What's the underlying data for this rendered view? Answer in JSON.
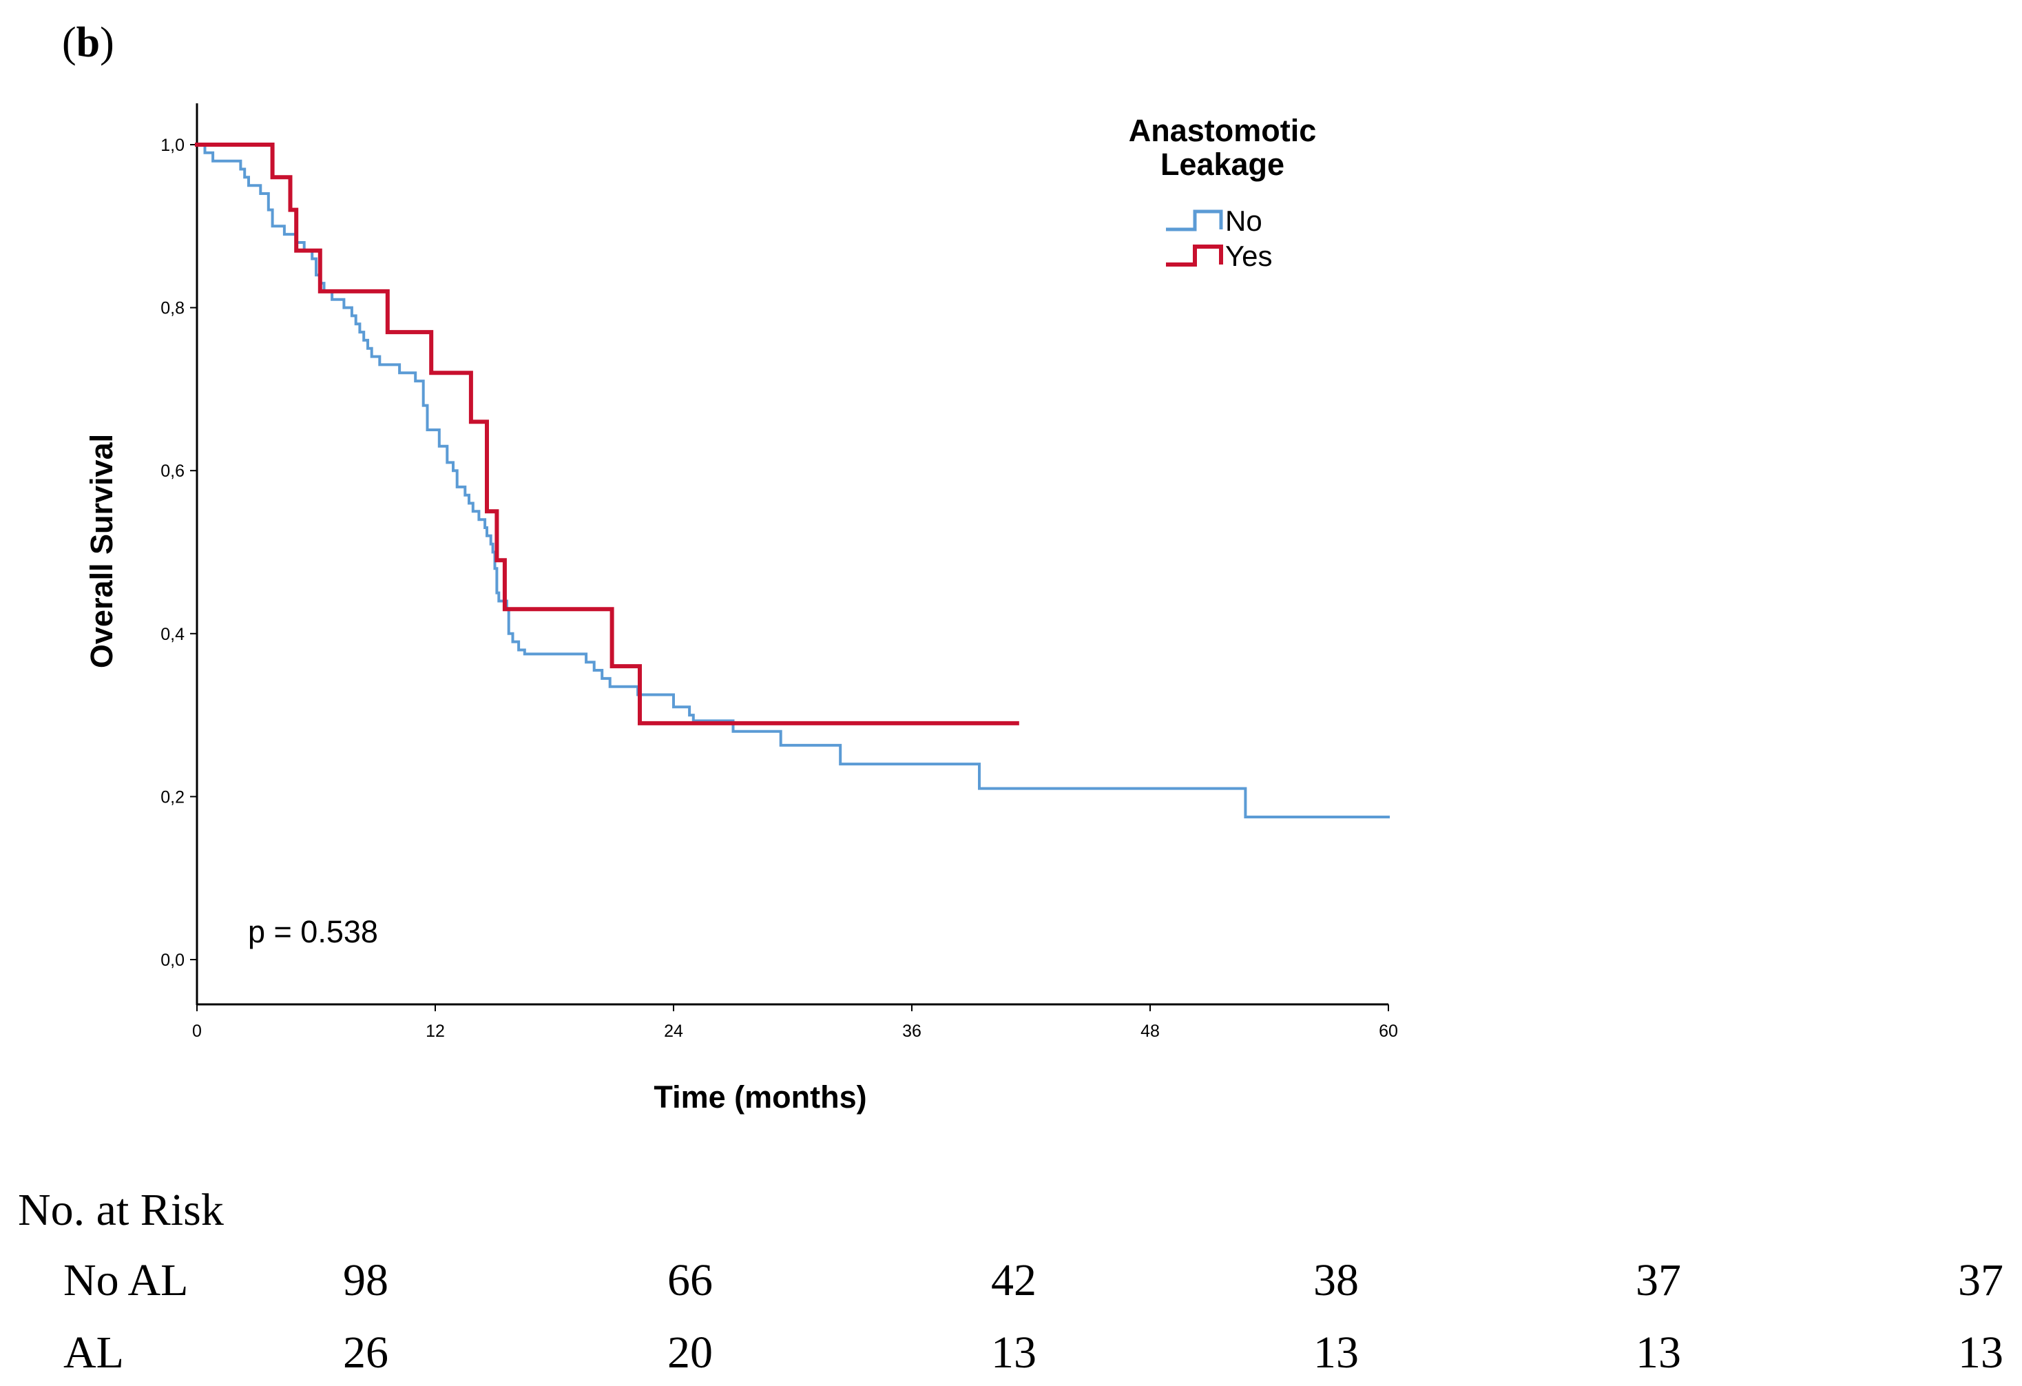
{
  "panel": {
    "open": "(",
    "letter": "b",
    "close": ")"
  },
  "chart_data": {
    "type": "line",
    "title": "",
    "xlabel": "Time (months)",
    "ylabel": "Overall Survival",
    "xlim": [
      0,
      60
    ],
    "ylim": [
      0.0,
      1.0
    ],
    "xticks": [
      0,
      12,
      24,
      36,
      48,
      60
    ],
    "xtick_labels": [
      "0",
      "12",
      "24",
      "36",
      "48",
      "60"
    ],
    "yticks": [
      0.0,
      0.2,
      0.4,
      0.6,
      0.8,
      1.0
    ],
    "ytick_labels": [
      "0,0",
      "0,2",
      "0,4",
      "0,6",
      "0,8",
      "1,0"
    ],
    "grid": false,
    "legend": {
      "title_line1": "Anastomotic",
      "title_line2": "Leakage",
      "placement": "top-right"
    },
    "annotation": "p = 0.538",
    "series": [
      {
        "name": "No",
        "color": "#5b9bd5",
        "step": true,
        "points": [
          [
            0,
            1.0
          ],
          [
            0.4,
            0.99
          ],
          [
            0.8,
            0.98
          ],
          [
            2.2,
            0.97
          ],
          [
            2.4,
            0.96
          ],
          [
            2.6,
            0.95
          ],
          [
            3.2,
            0.94
          ],
          [
            3.6,
            0.92
          ],
          [
            3.8,
            0.9
          ],
          [
            4.4,
            0.89
          ],
          [
            5.0,
            0.88
          ],
          [
            5.4,
            0.87
          ],
          [
            5.8,
            0.86
          ],
          [
            6.0,
            0.84
          ],
          [
            6.2,
            0.83
          ],
          [
            6.4,
            0.82
          ],
          [
            6.8,
            0.81
          ],
          [
            7.4,
            0.8
          ],
          [
            7.8,
            0.79
          ],
          [
            8.0,
            0.78
          ],
          [
            8.2,
            0.77
          ],
          [
            8.4,
            0.76
          ],
          [
            8.6,
            0.75
          ],
          [
            8.8,
            0.74
          ],
          [
            9.2,
            0.73
          ],
          [
            10.2,
            0.72
          ],
          [
            11.0,
            0.71
          ],
          [
            11.4,
            0.68
          ],
          [
            11.6,
            0.65
          ],
          [
            12.2,
            0.63
          ],
          [
            12.6,
            0.61
          ],
          [
            12.9,
            0.6
          ],
          [
            13.1,
            0.58
          ],
          [
            13.5,
            0.57
          ],
          [
            13.7,
            0.56
          ],
          [
            13.9,
            0.55
          ],
          [
            14.2,
            0.54
          ],
          [
            14.5,
            0.53
          ],
          [
            14.6,
            0.52
          ],
          [
            14.8,
            0.51
          ],
          [
            14.9,
            0.5
          ],
          [
            15.0,
            0.48
          ],
          [
            15.1,
            0.45
          ],
          [
            15.2,
            0.44
          ],
          [
            15.6,
            0.43
          ],
          [
            15.7,
            0.4
          ],
          [
            15.9,
            0.39
          ],
          [
            16.2,
            0.38
          ],
          [
            16.5,
            0.375
          ],
          [
            19.6,
            0.365
          ],
          [
            20.0,
            0.355
          ],
          [
            20.4,
            0.345
          ],
          [
            20.8,
            0.335
          ],
          [
            22.2,
            0.325
          ],
          [
            24.0,
            0.31
          ],
          [
            24.8,
            0.3
          ],
          [
            25.0,
            0.293
          ],
          [
            27.0,
            0.28
          ],
          [
            29.4,
            0.263
          ],
          [
            32.4,
            0.24
          ],
          [
            39.4,
            0.21
          ],
          [
            52.8,
            0.175
          ],
          [
            60,
            0.175
          ]
        ]
      },
      {
        "name": "Yes",
        "color": "#c8102e",
        "step": true,
        "points": [
          [
            0,
            1.0
          ],
          [
            3.8,
            0.96
          ],
          [
            4.7,
            0.92
          ],
          [
            5.0,
            0.87
          ],
          [
            6.2,
            0.82
          ],
          [
            9.6,
            0.77
          ],
          [
            11.8,
            0.72
          ],
          [
            13.8,
            0.66
          ],
          [
            14.6,
            0.55
          ],
          [
            15.1,
            0.49
          ],
          [
            15.5,
            0.43
          ],
          [
            20.9,
            0.36
          ],
          [
            22.3,
            0.29
          ],
          [
            41.3,
            0.29
          ]
        ]
      }
    ]
  },
  "risk_table": {
    "title": "No. at Risk",
    "rows": [
      {
        "label": "No AL",
        "values": [
          "98",
          "66",
          "42",
          "38",
          "37",
          "37"
        ]
      },
      {
        "label": "AL",
        "values": [
          "26",
          "20",
          "13",
          "13",
          "13",
          "13"
        ]
      }
    ]
  }
}
